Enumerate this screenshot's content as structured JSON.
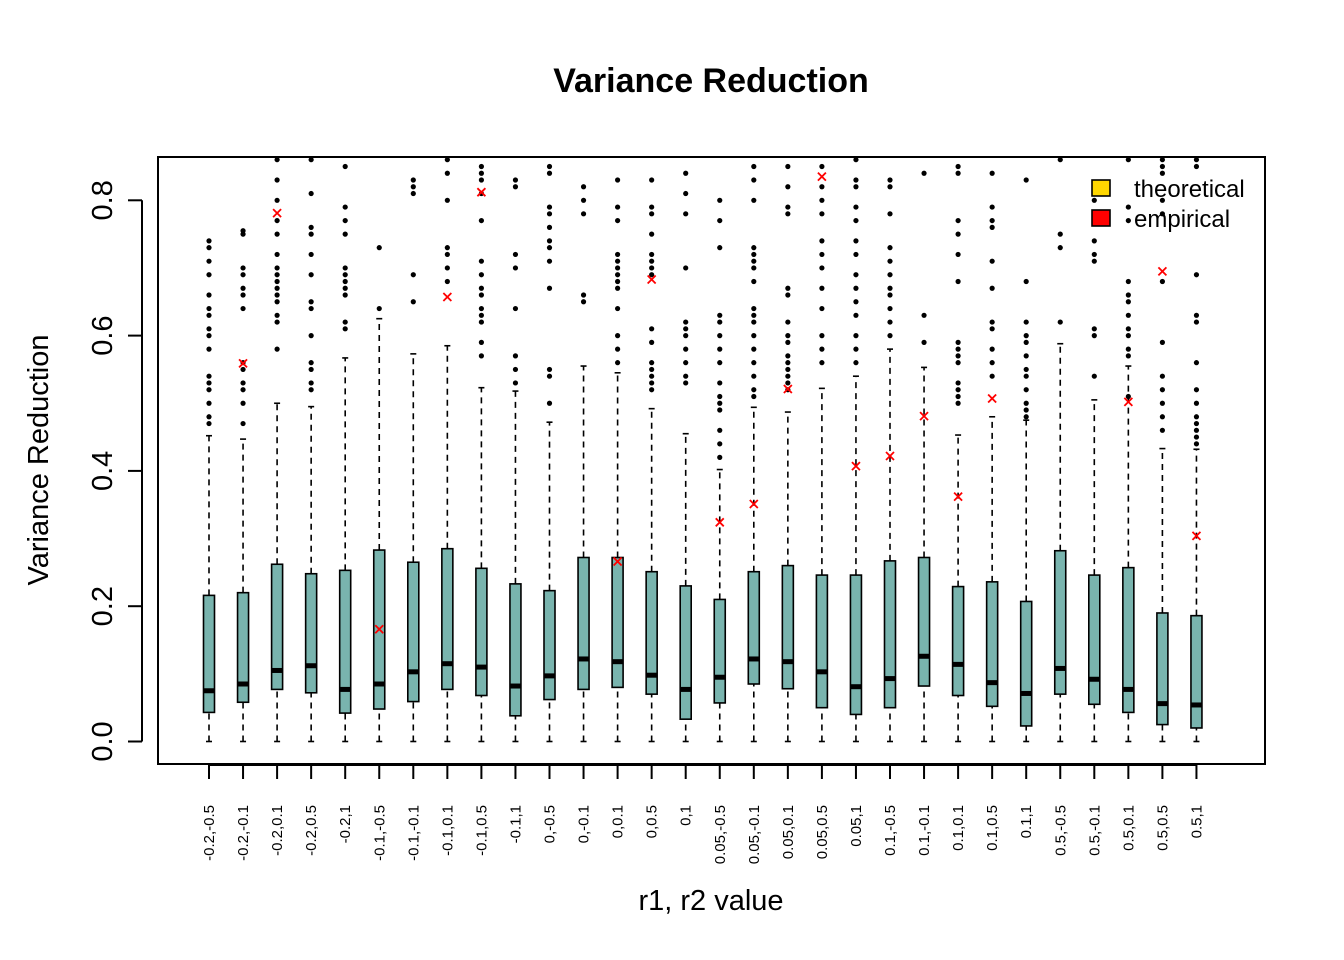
{
  "chart_data": {
    "type": "box",
    "title": "Variance Reduction",
    "xlabel": "r1, r2 value",
    "ylabel": "Variance Reduction",
    "ylim": [
      -0.03,
      0.865
    ],
    "yticks": [
      0.0,
      0.2,
      0.4,
      0.6,
      0.8
    ],
    "ytick_labels": [
      "0.0",
      "0.2",
      "0.4",
      "0.6",
      "0.8"
    ],
    "colors": {
      "box_fill": "#79B4AE",
      "theoretical": "#FFD700",
      "empirical": "#FF0000"
    },
    "legend": {
      "position": "top-right",
      "entries": [
        {
          "label": "theoretical",
          "color": "#FFD700"
        },
        {
          "label": "empirical",
          "color": "#FF0000"
        }
      ]
    },
    "categories": [
      "-0.2,-0.5",
      "-0.2,-0.1",
      "-0.2,0.1",
      "-0.2,0.5",
      "-0.2,1",
      "-0.1,-0.5",
      "-0.1,-0.1",
      "-0.1,0.1",
      "-0.1,0.5",
      "-0.1,1",
      "0,-0.5",
      "0,-0.1",
      "0,0.1",
      "0,0.5",
      "0,1",
      "0.05,-0.5",
      "0.05,-0.1",
      "0.05,0.1",
      "0.05,0.5",
      "0.05,1",
      "0.1,-0.5",
      "0.1,-0.1",
      "0.1,0.1",
      "0.1,0.5",
      "0.1,1",
      "0.5,-0.5",
      "0.5,-0.1",
      "0.5,0.1",
      "0.5,0.5",
      "0.5,1"
    ],
    "boxes": [
      {
        "wlo": 0.0,
        "q1": 0.043,
        "med": 0.075,
        "q3": 0.216,
        "whi": 0.452,
        "out": [
          0.74,
          0.73,
          0.71,
          0.69,
          0.66,
          0.64,
          0.63,
          0.61,
          0.6,
          0.58,
          0.54,
          0.53,
          0.52,
          0.5,
          0.48,
          0.47
        ]
      },
      {
        "wlo": 0.0,
        "q1": 0.058,
        "med": 0.085,
        "q3": 0.22,
        "whi": 0.447,
        "out": [
          0.755,
          0.75,
          0.7,
          0.69,
          0.67,
          0.66,
          0.64,
          0.56,
          0.55,
          0.53,
          0.52,
          0.5,
          0.47
        ]
      },
      {
        "wlo": 0.0,
        "q1": 0.077,
        "med": 0.105,
        "q3": 0.262,
        "whi": 0.5,
        "out": [
          0.86,
          0.83,
          0.8,
          0.77,
          0.75,
          0.72,
          0.7,
          0.69,
          0.68,
          0.67,
          0.66,
          0.65,
          0.63,
          0.62,
          0.58
        ]
      },
      {
        "wlo": 0.0,
        "q1": 0.072,
        "med": 0.112,
        "q3": 0.248,
        "whi": 0.495,
        "out": [
          0.86,
          0.81,
          0.76,
          0.75,
          0.72,
          0.69,
          0.65,
          0.64,
          0.6,
          0.56,
          0.55,
          0.53,
          0.52
        ]
      },
      {
        "wlo": 0.0,
        "q1": 0.042,
        "med": 0.077,
        "q3": 0.253,
        "whi": 0.567,
        "out": [
          0.85,
          0.79,
          0.77,
          0.75,
          0.7,
          0.69,
          0.68,
          0.67,
          0.66,
          0.62,
          0.61
        ]
      },
      {
        "wlo": 0.0,
        "q1": 0.048,
        "med": 0.085,
        "q3": 0.283,
        "whi": 0.625,
        "out": [
          0.73,
          0.64
        ]
      },
      {
        "wlo": 0.0,
        "q1": 0.059,
        "med": 0.103,
        "q3": 0.265,
        "whi": 0.573,
        "out": [
          0.83,
          0.82,
          0.81,
          0.69,
          0.65
        ]
      },
      {
        "wlo": 0.0,
        "q1": 0.077,
        "med": 0.115,
        "q3": 0.285,
        "whi": 0.585,
        "out": [
          0.86,
          0.84,
          0.8,
          0.73,
          0.72,
          0.7,
          0.68
        ]
      },
      {
        "wlo": 0.0,
        "q1": 0.068,
        "med": 0.11,
        "q3": 0.256,
        "whi": 0.523,
        "out": [
          0.85,
          0.84,
          0.83,
          0.81,
          0.77,
          0.71,
          0.69,
          0.67,
          0.66,
          0.64,
          0.63,
          0.62,
          0.59,
          0.57
        ]
      },
      {
        "wlo": 0.0,
        "q1": 0.038,
        "med": 0.082,
        "q3": 0.233,
        "whi": 0.518,
        "out": [
          0.83,
          0.82,
          0.72,
          0.7,
          0.64,
          0.57,
          0.55,
          0.53
        ]
      },
      {
        "wlo": 0.0,
        "q1": 0.062,
        "med": 0.097,
        "q3": 0.223,
        "whi": 0.472,
        "out": [
          0.85,
          0.84,
          0.79,
          0.78,
          0.76,
          0.74,
          0.73,
          0.71,
          0.67,
          0.55,
          0.54,
          0.5
        ]
      },
      {
        "wlo": 0.0,
        "q1": 0.077,
        "med": 0.122,
        "q3": 0.272,
        "whi": 0.555,
        "out": [
          0.82,
          0.8,
          0.78,
          0.66,
          0.65
        ]
      },
      {
        "wlo": 0.0,
        "q1": 0.08,
        "med": 0.118,
        "q3": 0.272,
        "whi": 0.545,
        "out": [
          0.83,
          0.79,
          0.77,
          0.72,
          0.71,
          0.7,
          0.69,
          0.68,
          0.67,
          0.64,
          0.6,
          0.58,
          0.56
        ]
      },
      {
        "wlo": 0.0,
        "q1": 0.07,
        "med": 0.098,
        "q3": 0.251,
        "whi": 0.492,
        "out": [
          0.83,
          0.79,
          0.78,
          0.75,
          0.72,
          0.71,
          0.7,
          0.69,
          0.61,
          0.59,
          0.56,
          0.55,
          0.54,
          0.53,
          0.52
        ]
      },
      {
        "wlo": 0.0,
        "q1": 0.033,
        "med": 0.077,
        "q3": 0.23,
        "whi": 0.455,
        "out": [
          0.84,
          0.81,
          0.78,
          0.7,
          0.62,
          0.61,
          0.6,
          0.58,
          0.56,
          0.54,
          0.53
        ]
      },
      {
        "wlo": 0.0,
        "q1": 0.057,
        "med": 0.095,
        "q3": 0.21,
        "whi": 0.402,
        "out": [
          0.8,
          0.77,
          0.73,
          0.63,
          0.62,
          0.6,
          0.58,
          0.56,
          0.53,
          0.51,
          0.5,
          0.49,
          0.46,
          0.44,
          0.42
        ]
      },
      {
        "wlo": 0.0,
        "q1": 0.085,
        "med": 0.122,
        "q3": 0.251,
        "whi": 0.494,
        "out": [
          0.85,
          0.83,
          0.8,
          0.73,
          0.72,
          0.71,
          0.7,
          0.68,
          0.64,
          0.63,
          0.62,
          0.6,
          0.58,
          0.56,
          0.54,
          0.52,
          0.51
        ]
      },
      {
        "wlo": 0.0,
        "q1": 0.078,
        "med": 0.118,
        "q3": 0.26,
        "whi": 0.487,
        "out": [
          0.85,
          0.82,
          0.79,
          0.78,
          0.67,
          0.66,
          0.62,
          0.6,
          0.59,
          0.57,
          0.56,
          0.55,
          0.54,
          0.53,
          0.52
        ]
      },
      {
        "wlo": 0.0,
        "q1": 0.05,
        "med": 0.103,
        "q3": 0.246,
        "whi": 0.522,
        "out": [
          0.85,
          0.82,
          0.8,
          0.78,
          0.74,
          0.72,
          0.7,
          0.67,
          0.64,
          0.6,
          0.58,
          0.56
        ]
      },
      {
        "wlo": 0.0,
        "q1": 0.04,
        "med": 0.081,
        "q3": 0.246,
        "whi": 0.54,
        "out": [
          0.86,
          0.83,
          0.82,
          0.79,
          0.77,
          0.74,
          0.72,
          0.69,
          0.67,
          0.65,
          0.63,
          0.6,
          0.58,
          0.56
        ]
      },
      {
        "wlo": 0.0,
        "q1": 0.05,
        "med": 0.093,
        "q3": 0.267,
        "whi": 0.58,
        "out": [
          0.83,
          0.82,
          0.78,
          0.73,
          0.71,
          0.69,
          0.67,
          0.66,
          0.64,
          0.62,
          0.6
        ]
      },
      {
        "wlo": 0.0,
        "q1": 0.082,
        "med": 0.126,
        "q3": 0.272,
        "whi": 0.553,
        "out": [
          0.84,
          0.63,
          0.59
        ]
      },
      {
        "wlo": 0.0,
        "q1": 0.068,
        "med": 0.114,
        "q3": 0.229,
        "whi": 0.453,
        "out": [
          0.85,
          0.84,
          0.77,
          0.75,
          0.72,
          0.68,
          0.59,
          0.58,
          0.57,
          0.56,
          0.53,
          0.52,
          0.51,
          0.5
        ]
      },
      {
        "wlo": 0.0,
        "q1": 0.052,
        "med": 0.087,
        "q3": 0.236,
        "whi": 0.48,
        "out": [
          0.84,
          0.79,
          0.77,
          0.76,
          0.71,
          0.67,
          0.62,
          0.61,
          0.58,
          0.56,
          0.54
        ]
      },
      {
        "wlo": 0.0,
        "q1": 0.023,
        "med": 0.071,
        "q3": 0.207,
        "whi": 0.475,
        "out": [
          0.83,
          0.68,
          0.62,
          0.6,
          0.59,
          0.57,
          0.55,
          0.54,
          0.52,
          0.5,
          0.49,
          0.48
        ]
      },
      {
        "wlo": 0.0,
        "q1": 0.07,
        "med": 0.108,
        "q3": 0.282,
        "whi": 0.588,
        "out": [
          0.86,
          0.75,
          0.73,
          0.62
        ]
      },
      {
        "wlo": 0.0,
        "q1": 0.055,
        "med": 0.092,
        "q3": 0.246,
        "whi": 0.505,
        "out": [
          0.8,
          0.74,
          0.72,
          0.71,
          0.61,
          0.6,
          0.54
        ]
      },
      {
        "wlo": 0.0,
        "q1": 0.043,
        "med": 0.077,
        "q3": 0.257,
        "whi": 0.555,
        "out": [
          0.86,
          0.79,
          0.77,
          0.68,
          0.66,
          0.65,
          0.63,
          0.61,
          0.6,
          0.58,
          0.57,
          0.51
        ]
      },
      {
        "wlo": 0.0,
        "q1": 0.025,
        "med": 0.056,
        "q3": 0.19,
        "whi": 0.433,
        "out": [
          0.86,
          0.85,
          0.84,
          0.8,
          0.78,
          0.68,
          0.59,
          0.54,
          0.52,
          0.5,
          0.48,
          0.46
        ]
      },
      {
        "wlo": 0.0,
        "q1": 0.02,
        "med": 0.054,
        "q3": 0.186,
        "whi": 0.432,
        "out": [
          0.86,
          0.85,
          0.69,
          0.63,
          0.62,
          0.56,
          0.52,
          0.5,
          0.48,
          0.47,
          0.46,
          0.45,
          0.44
        ]
      }
    ],
    "theoretical": [
      null,
      0.559,
      0.781,
      null,
      null,
      0.166,
      null,
      0.657,
      0.812,
      null,
      null,
      null,
      0.266,
      0.683,
      null,
      0.324,
      0.351,
      0.521,
      0.835,
      0.407,
      0.422,
      0.481,
      0.362,
      0.507,
      null,
      null,
      null,
      0.502,
      0.695,
      0.304
    ]
  }
}
